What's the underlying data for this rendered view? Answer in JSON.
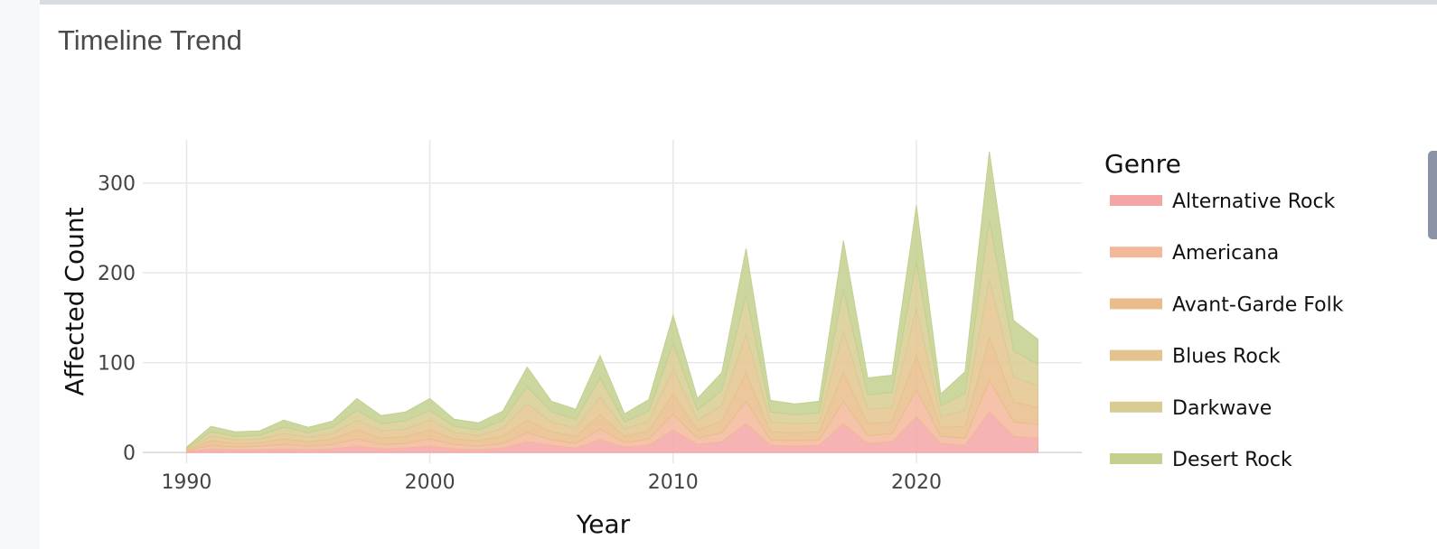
{
  "panel": {
    "title": "Timeline Trend"
  },
  "chart_data": {
    "type": "area",
    "stacked": true,
    "xlabel": "Year",
    "ylabel": "Affected Count",
    "xlim": [
      1988.2,
      2026.8
    ],
    "ylim": [
      -12,
      348
    ],
    "xticks": [
      1990,
      2000,
      2010,
      2020
    ],
    "yticks": [
      0,
      100,
      200,
      300
    ],
    "grid": true,
    "legend_title": "Genre",
    "legend_position": "right",
    "x": [
      1990,
      1991,
      1992,
      1993,
      1994,
      1995,
      1996,
      1997,
      1998,
      1999,
      2000,
      2001,
      2002,
      2003,
      2004,
      2005,
      2006,
      2007,
      2008,
      2009,
      2010,
      2011,
      2012,
      2013,
      2014,
      2015,
      2016,
      2017,
      2018,
      2019,
      2020,
      2021,
      2022,
      2023,
      2024,
      2025
    ],
    "series": [
      {
        "name": "Alternative Rock",
        "color": "#f4a6a6",
        "values": [
          1,
          4,
          3,
          3,
          4,
          3,
          4,
          7,
          4,
          5,
          7,
          4,
          3,
          5,
          12,
          8,
          5,
          14,
          6,
          8,
          25,
          9,
          12,
          32,
          8,
          7,
          8,
          32,
          10,
          12,
          40,
          10,
          8,
          45,
          18,
          16
        ]
      },
      {
        "name": "Americana",
        "color": "#f3b89a",
        "values": [
          1,
          4,
          3,
          4,
          5,
          4,
          5,
          8,
          5,
          5,
          8,
          5,
          4,
          5,
          10,
          6,
          5,
          12,
          5,
          7,
          18,
          7,
          10,
          25,
          6,
          6,
          6,
          25,
          9,
          9,
          30,
          8,
          8,
          35,
          16,
          15
        ]
      },
      {
        "name": "Avant-Garde Folk",
        "color": "#e9bd8b",
        "values": [
          1,
          5,
          4,
          4,
          6,
          5,
          6,
          10,
          7,
          8,
          10,
          6,
          6,
          8,
          14,
          9,
          8,
          16,
          7,
          9,
          22,
          9,
          13,
          32,
          9,
          9,
          9,
          32,
          13,
          13,
          38,
          10,
          13,
          48,
          22,
          19
        ]
      },
      {
        "name": "Blues Rock",
        "color": "#e4c48e",
        "values": [
          1,
          5,
          4,
          4,
          6,
          5,
          6,
          11,
          8,
          8,
          11,
          7,
          6,
          9,
          18,
          11,
          9,
          20,
          8,
          11,
          28,
          11,
          17,
          43,
          11,
          10,
          10,
          46,
          16,
          16,
          52,
          12,
          18,
          64,
          28,
          24
        ]
      },
      {
        "name": "Darkwave",
        "color": "#d8cc92",
        "values": [
          1,
          5,
          4,
          4,
          7,
          5,
          7,
          11,
          8,
          9,
          11,
          7,
          6,
          9,
          19,
          11,
          10,
          21,
          8,
          11,
          28,
          11,
          17,
          43,
          11,
          10,
          11,
          46,
          16,
          17,
          52,
          12,
          19,
          66,
          29,
          24
        ]
      },
      {
        "name": "Desert Rock",
        "color": "#c3d08e",
        "values": [
          1,
          6,
          5,
          5,
          8,
          6,
          7,
          13,
          9,
          10,
          13,
          8,
          8,
          10,
          22,
          12,
          11,
          25,
          9,
          13,
          32,
          13,
          20,
          52,
          13,
          12,
          13,
          55,
          19,
          19,
          63,
          13,
          24,
          77,
          34,
          28
        ]
      }
    ]
  }
}
